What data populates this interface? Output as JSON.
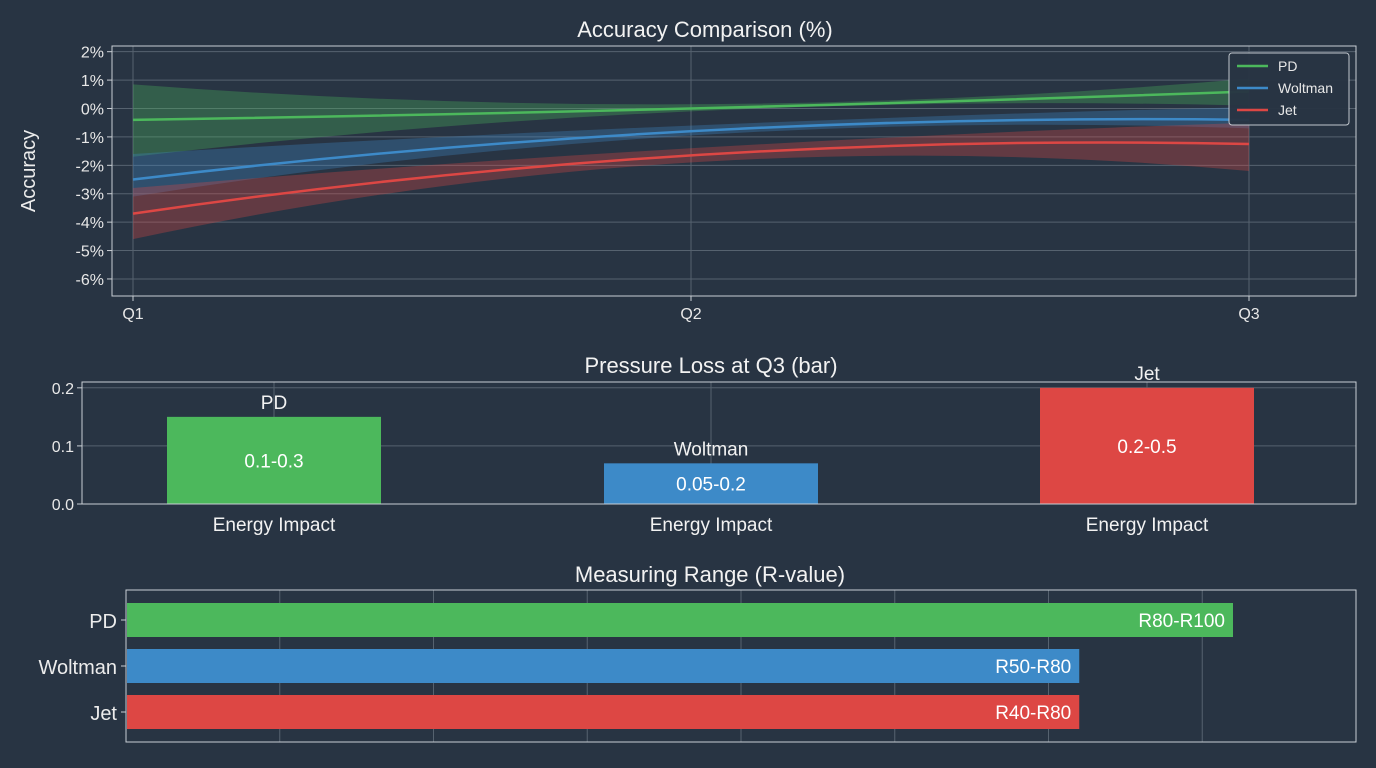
{
  "colors": {
    "background": "#283443",
    "pd": "#4cb85c",
    "woltman": "#3d8ac8",
    "jet": "#dd4744"
  },
  "chart_data": [
    {
      "type": "line",
      "title": "Accuracy Comparison (%)",
      "ylabel": "Accuracy",
      "x": [
        "Q1",
        "Q2",
        "Q3"
      ],
      "ylim": [
        -6.6,
        2.2
      ],
      "yticks": [
        "2%",
        "1%",
        "0%",
        "-1%",
        "-2%",
        "-3%",
        "-4%",
        "-5%",
        "-6%"
      ],
      "legend": "top-right",
      "grid": true,
      "series": [
        {
          "name": "PD",
          "values": [
            -0.4,
            0.0,
            0.6
          ],
          "lower": [
            -1.7,
            -0.1,
            0.1
          ],
          "upper": [
            0.85,
            0.15,
            1.05
          ]
        },
        {
          "name": "Woltman",
          "values": [
            -2.5,
            -0.8,
            -0.4
          ],
          "lower": [
            -3.1,
            -0.95,
            -0.7
          ],
          "upper": [
            -1.6,
            -0.6,
            0.05
          ]
        },
        {
          "name": "Jet",
          "values": [
            -3.7,
            -1.65,
            -1.25
          ],
          "lower": [
            -4.6,
            -1.9,
            -2.2
          ],
          "upper": [
            -2.8,
            -1.4,
            -0.5
          ]
        }
      ]
    },
    {
      "type": "bar",
      "title": "Pressure Loss at Q3 (bar)",
      "categories": [
        "Energy Impact",
        "Energy Impact",
        "Energy Impact"
      ],
      "ylim": [
        0,
        0.21
      ],
      "yticks": [
        "0.0",
        "0.1",
        "0.2"
      ],
      "grid": true,
      "series": [
        {
          "name": "PD",
          "value": 0.15,
          "label": "0.1-0.3"
        },
        {
          "name": "Woltman",
          "value": 0.07,
          "label": "0.05-0.2"
        },
        {
          "name": "Jet",
          "value": 0.2,
          "label": "0.2-0.5"
        }
      ]
    },
    {
      "type": "bar",
      "orientation": "horizontal",
      "title": "Measuring Range (R-value)",
      "categories": [
        "PD",
        "Woltman",
        "Jet"
      ],
      "xlim": [
        0,
        80
      ],
      "grid": true,
      "values": [
        72,
        62,
        62
      ],
      "labels": [
        "R80-R100",
        "R50-R80",
        "R40-R80"
      ]
    }
  ]
}
